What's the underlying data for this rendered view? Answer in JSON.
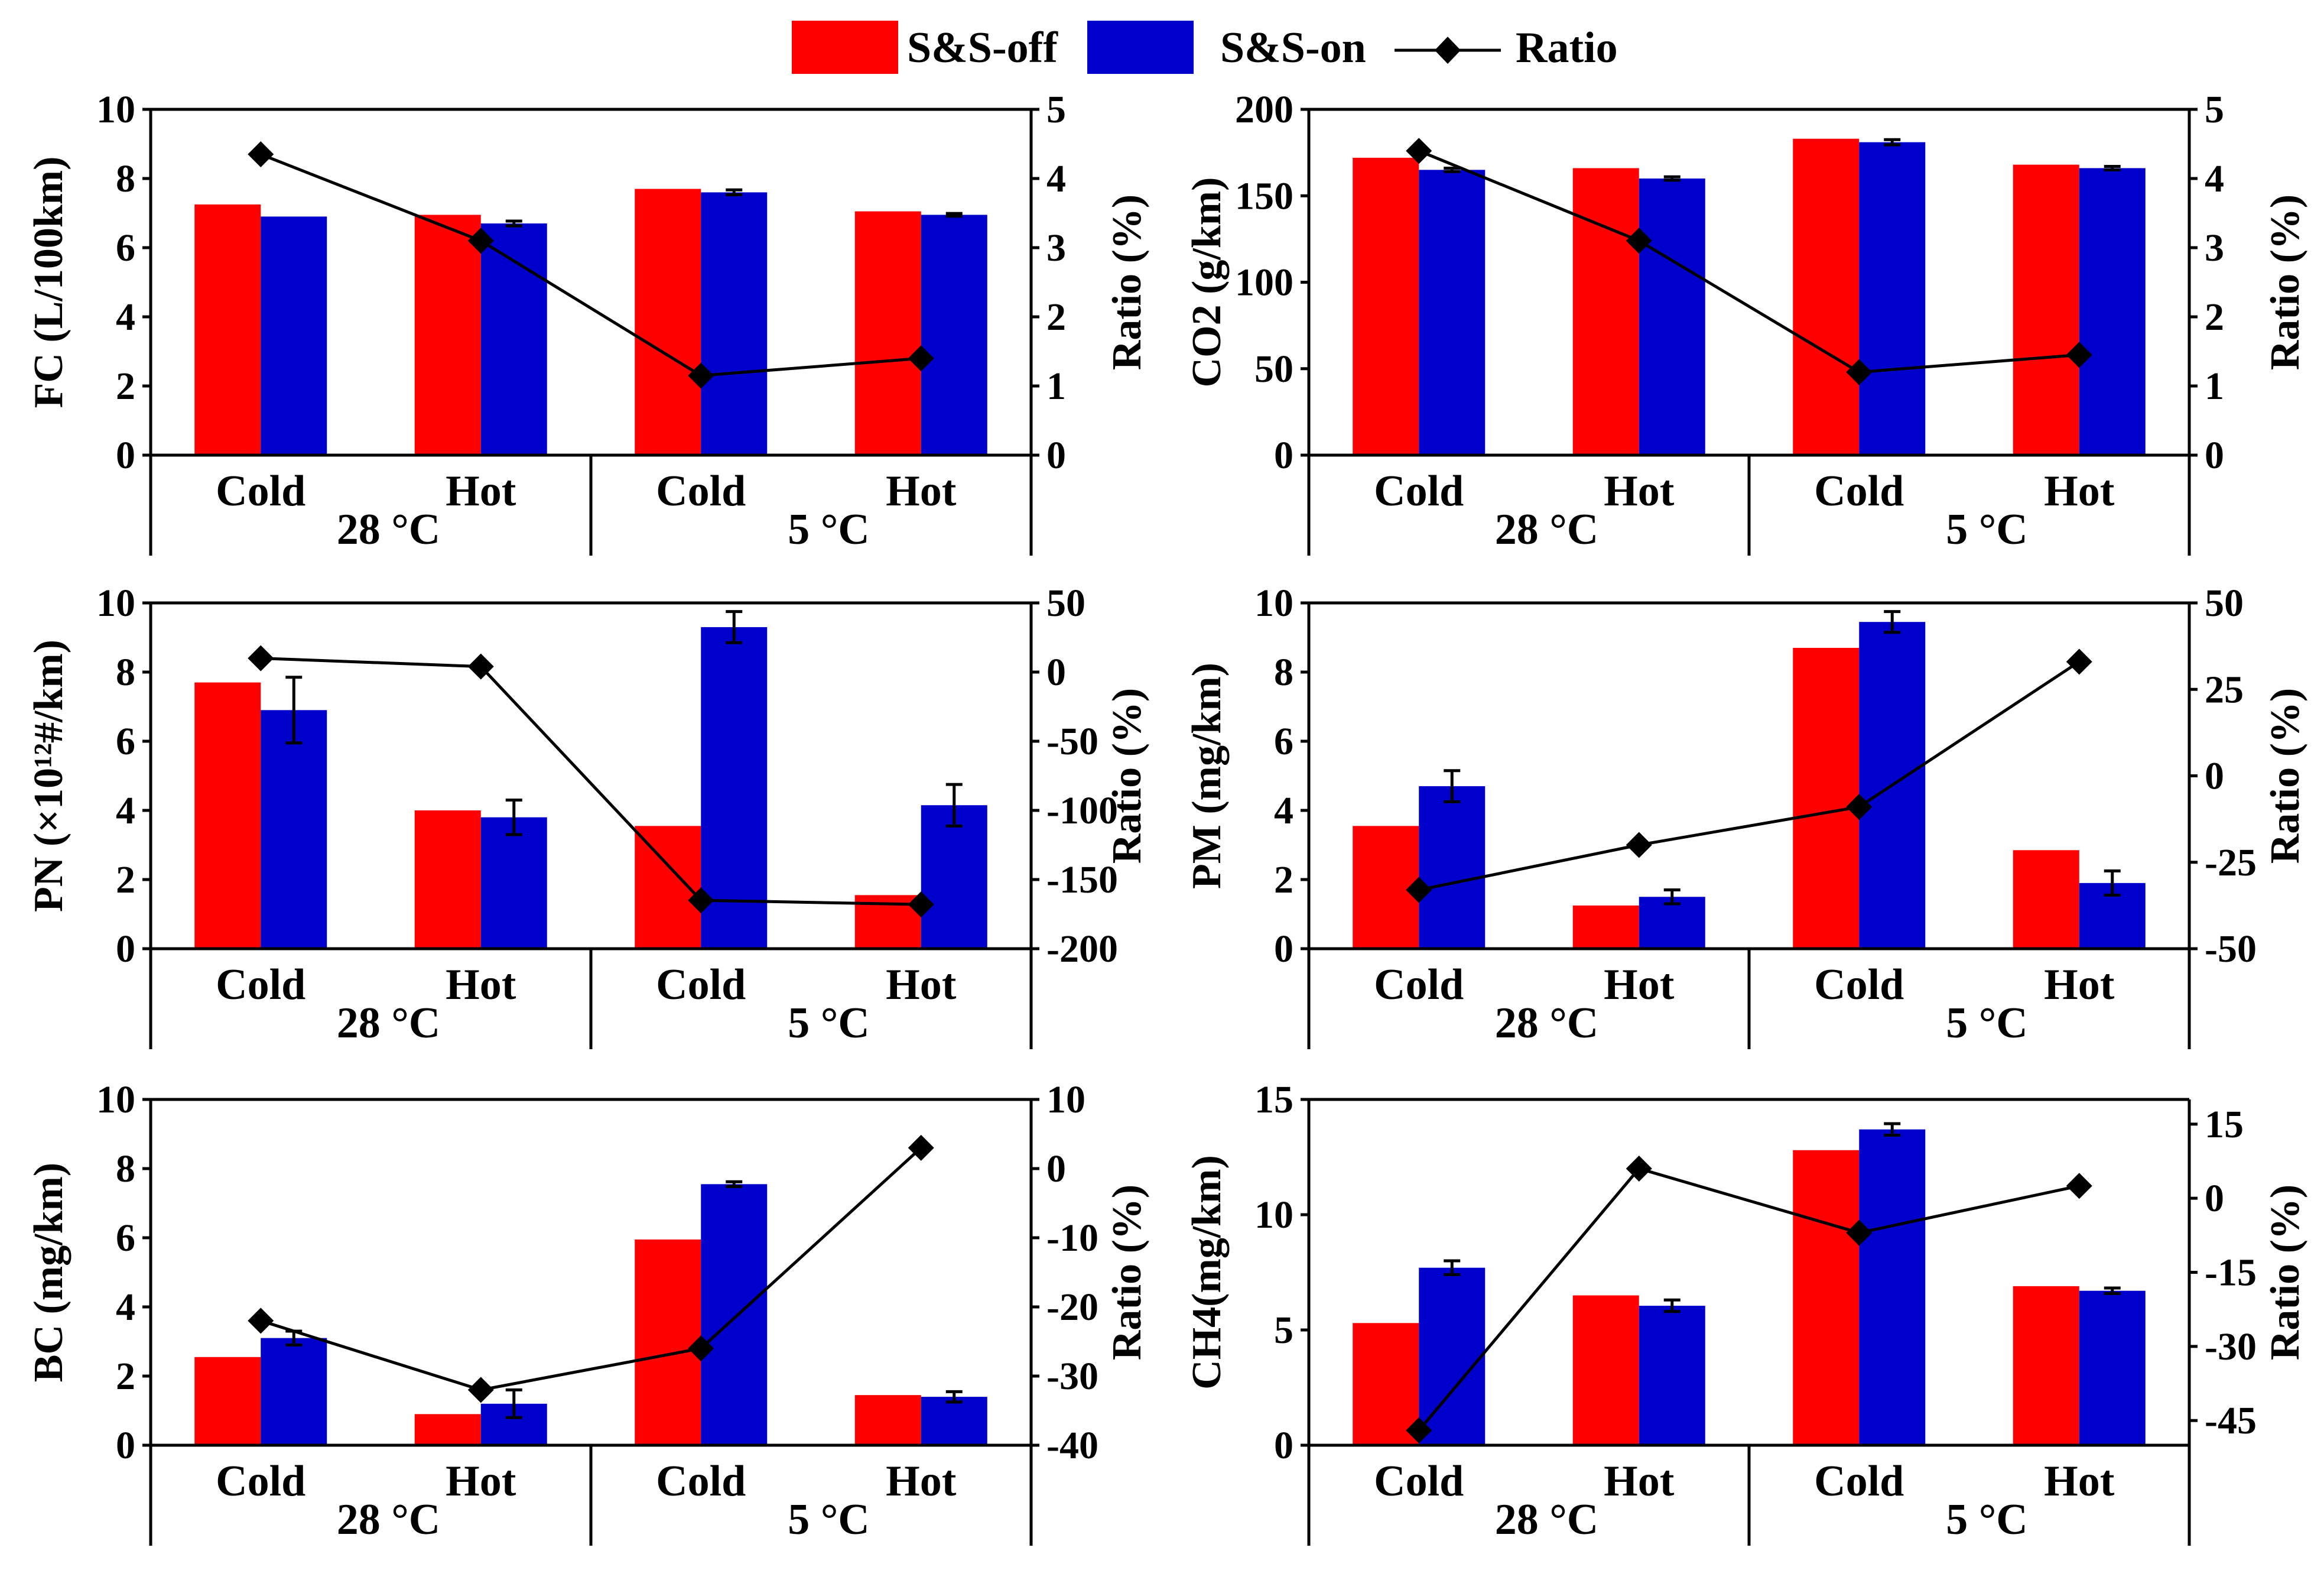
{
  "legend": {
    "off": "S&S-off",
    "on": "S&S-on",
    "ratio": "Ratio"
  },
  "colors": {
    "off": "#ff0000",
    "on": "#0000cc",
    "ratio": "#000000"
  },
  "chart_data": [
    {
      "type": "bar",
      "categories": [
        "Cold",
        "Hot",
        "Cold",
        "Hot"
      ],
      "groups": [
        "28 °C",
        "5 °C"
      ],
      "ylabel": "FC (L/100km)",
      "y2label": "Ratio (%)",
      "ylim": [
        0,
        10
      ],
      "yticks": [
        0,
        2,
        4,
        6,
        8,
        10
      ],
      "y2lim": [
        0,
        5
      ],
      "y2ticks": [
        0,
        1,
        2,
        3,
        4,
        5
      ],
      "series": [
        {
          "name": "S&S-off",
          "values": [
            7.25,
            6.95,
            7.7,
            7.05
          ]
        },
        {
          "name": "S&S-on",
          "values": [
            6.9,
            6.7,
            7.6,
            6.95
          ],
          "errors": [
            0,
            0.07,
            0.07,
            0.04
          ]
        },
        {
          "name": "Ratio",
          "values": [
            4.35,
            3.1,
            1.15,
            1.4
          ]
        }
      ]
    },
    {
      "type": "bar",
      "categories": [
        "Cold",
        "Hot",
        "Cold",
        "Hot"
      ],
      "groups": [
        "28 °C",
        "5 °C"
      ],
      "ylabel": "CO2 (g/km)",
      "y2label": "Ratio (%)",
      "ylim": [
        0,
        200
      ],
      "yticks": [
        0,
        50,
        100,
        150,
        200
      ],
      "y2lim": [
        0,
        5
      ],
      "y2ticks": [
        0,
        1,
        2,
        3,
        4,
        5
      ],
      "series": [
        {
          "name": "S&S-off",
          "values": [
            172,
            166,
            183,
            168
          ]
        },
        {
          "name": "S&S-on",
          "values": [
            165,
            160,
            181,
            166
          ],
          "errors": [
            1,
            1,
            1.5,
            1
          ]
        },
        {
          "name": "Ratio",
          "values": [
            4.4,
            3.1,
            1.2,
            1.45
          ]
        }
      ]
    },
    {
      "type": "bar",
      "categories": [
        "Cold",
        "Hot",
        "Cold",
        "Hot"
      ],
      "groups": [
        "28 °C",
        "5 °C"
      ],
      "ylabel": "PN (×10¹²#/km)",
      "y2label": "Ratio (%)",
      "ylim": [
        0,
        10
      ],
      "yticks": [
        0,
        2,
        4,
        6,
        8,
        10
      ],
      "y2lim": [
        -200,
        50
      ],
      "y2ticks": [
        -200,
        -150,
        -100,
        -50,
        0,
        50
      ],
      "series": [
        {
          "name": "S&S-off",
          "values": [
            7.7,
            4.0,
            3.55,
            1.55
          ]
        },
        {
          "name": "S&S-on",
          "values": [
            6.9,
            3.8,
            9.3,
            4.15
          ],
          "errors": [
            0.95,
            0.5,
            0.45,
            0.6
          ]
        },
        {
          "name": "Ratio",
          "values": [
            10,
            4,
            -165,
            -168
          ]
        }
      ]
    },
    {
      "type": "bar",
      "categories": [
        "Cold",
        "Hot",
        "Cold",
        "Hot"
      ],
      "groups": [
        "28 °C",
        "5 °C"
      ],
      "ylabel": "PM (mg/km)",
      "y2label": "Ratio (%)",
      "ylim": [
        0,
        10
      ],
      "yticks": [
        0,
        2,
        4,
        6,
        8,
        10
      ],
      "y2lim": [
        -50,
        50
      ],
      "y2ticks": [
        -50,
        -25,
        0,
        25,
        50
      ],
      "series": [
        {
          "name": "S&S-off",
          "values": [
            3.55,
            1.25,
            8.7,
            2.85
          ]
        },
        {
          "name": "S&S-on",
          "values": [
            4.7,
            1.5,
            9.45,
            1.9
          ],
          "errors": [
            0.45,
            0.2,
            0.3,
            0.35
          ]
        },
        {
          "name": "Ratio",
          "values": [
            -33,
            -20,
            -9,
            33
          ]
        }
      ]
    },
    {
      "type": "bar",
      "categories": [
        "Cold",
        "Hot",
        "Cold",
        "Hot"
      ],
      "groups": [
        "28 °C",
        "5 °C"
      ],
      "ylabel": "BC (mg/km)",
      "y2label": "Ratio (%)",
      "ylim": [
        0,
        10
      ],
      "yticks": [
        0,
        2,
        4,
        6,
        8,
        10
      ],
      "y2lim": [
        -40,
        10
      ],
      "y2ticks": [
        -40,
        -30,
        -20,
        -10,
        0,
        10
      ],
      "series": [
        {
          "name": "S&S-off",
          "values": [
            2.55,
            0.9,
            5.95,
            1.45
          ]
        },
        {
          "name": "S&S-on",
          "values": [
            3.1,
            1.2,
            7.55,
            1.4
          ],
          "errors": [
            0.2,
            0.4,
            0.07,
            0.15
          ]
        },
        {
          "name": "Ratio",
          "values": [
            -22,
            -32,
            -26,
            3
          ]
        }
      ]
    },
    {
      "type": "bar",
      "categories": [
        "Cold",
        "Hot",
        "Cold",
        "Hot"
      ],
      "groups": [
        "28 °C",
        "5 °C"
      ],
      "ylabel": "CH4(mg/km)",
      "y2label": "Ratio (%)",
      "ylim": [
        0,
        15
      ],
      "yticks": [
        0,
        5,
        10,
        15
      ],
      "y2lim": [
        -50,
        20
      ],
      "y2ticks": [
        -45,
        -30,
        -15,
        0,
        15
      ],
      "series": [
        {
          "name": "S&S-off",
          "values": [
            5.3,
            6.5,
            12.8,
            6.9
          ]
        },
        {
          "name": "S&S-on",
          "values": [
            7.7,
            6.05,
            13.7,
            6.7
          ],
          "errors": [
            0.3,
            0.25,
            0.25,
            0.12
          ]
        },
        {
          "name": "Ratio",
          "values": [
            -47,
            6,
            -7,
            2.5
          ]
        }
      ]
    }
  ]
}
